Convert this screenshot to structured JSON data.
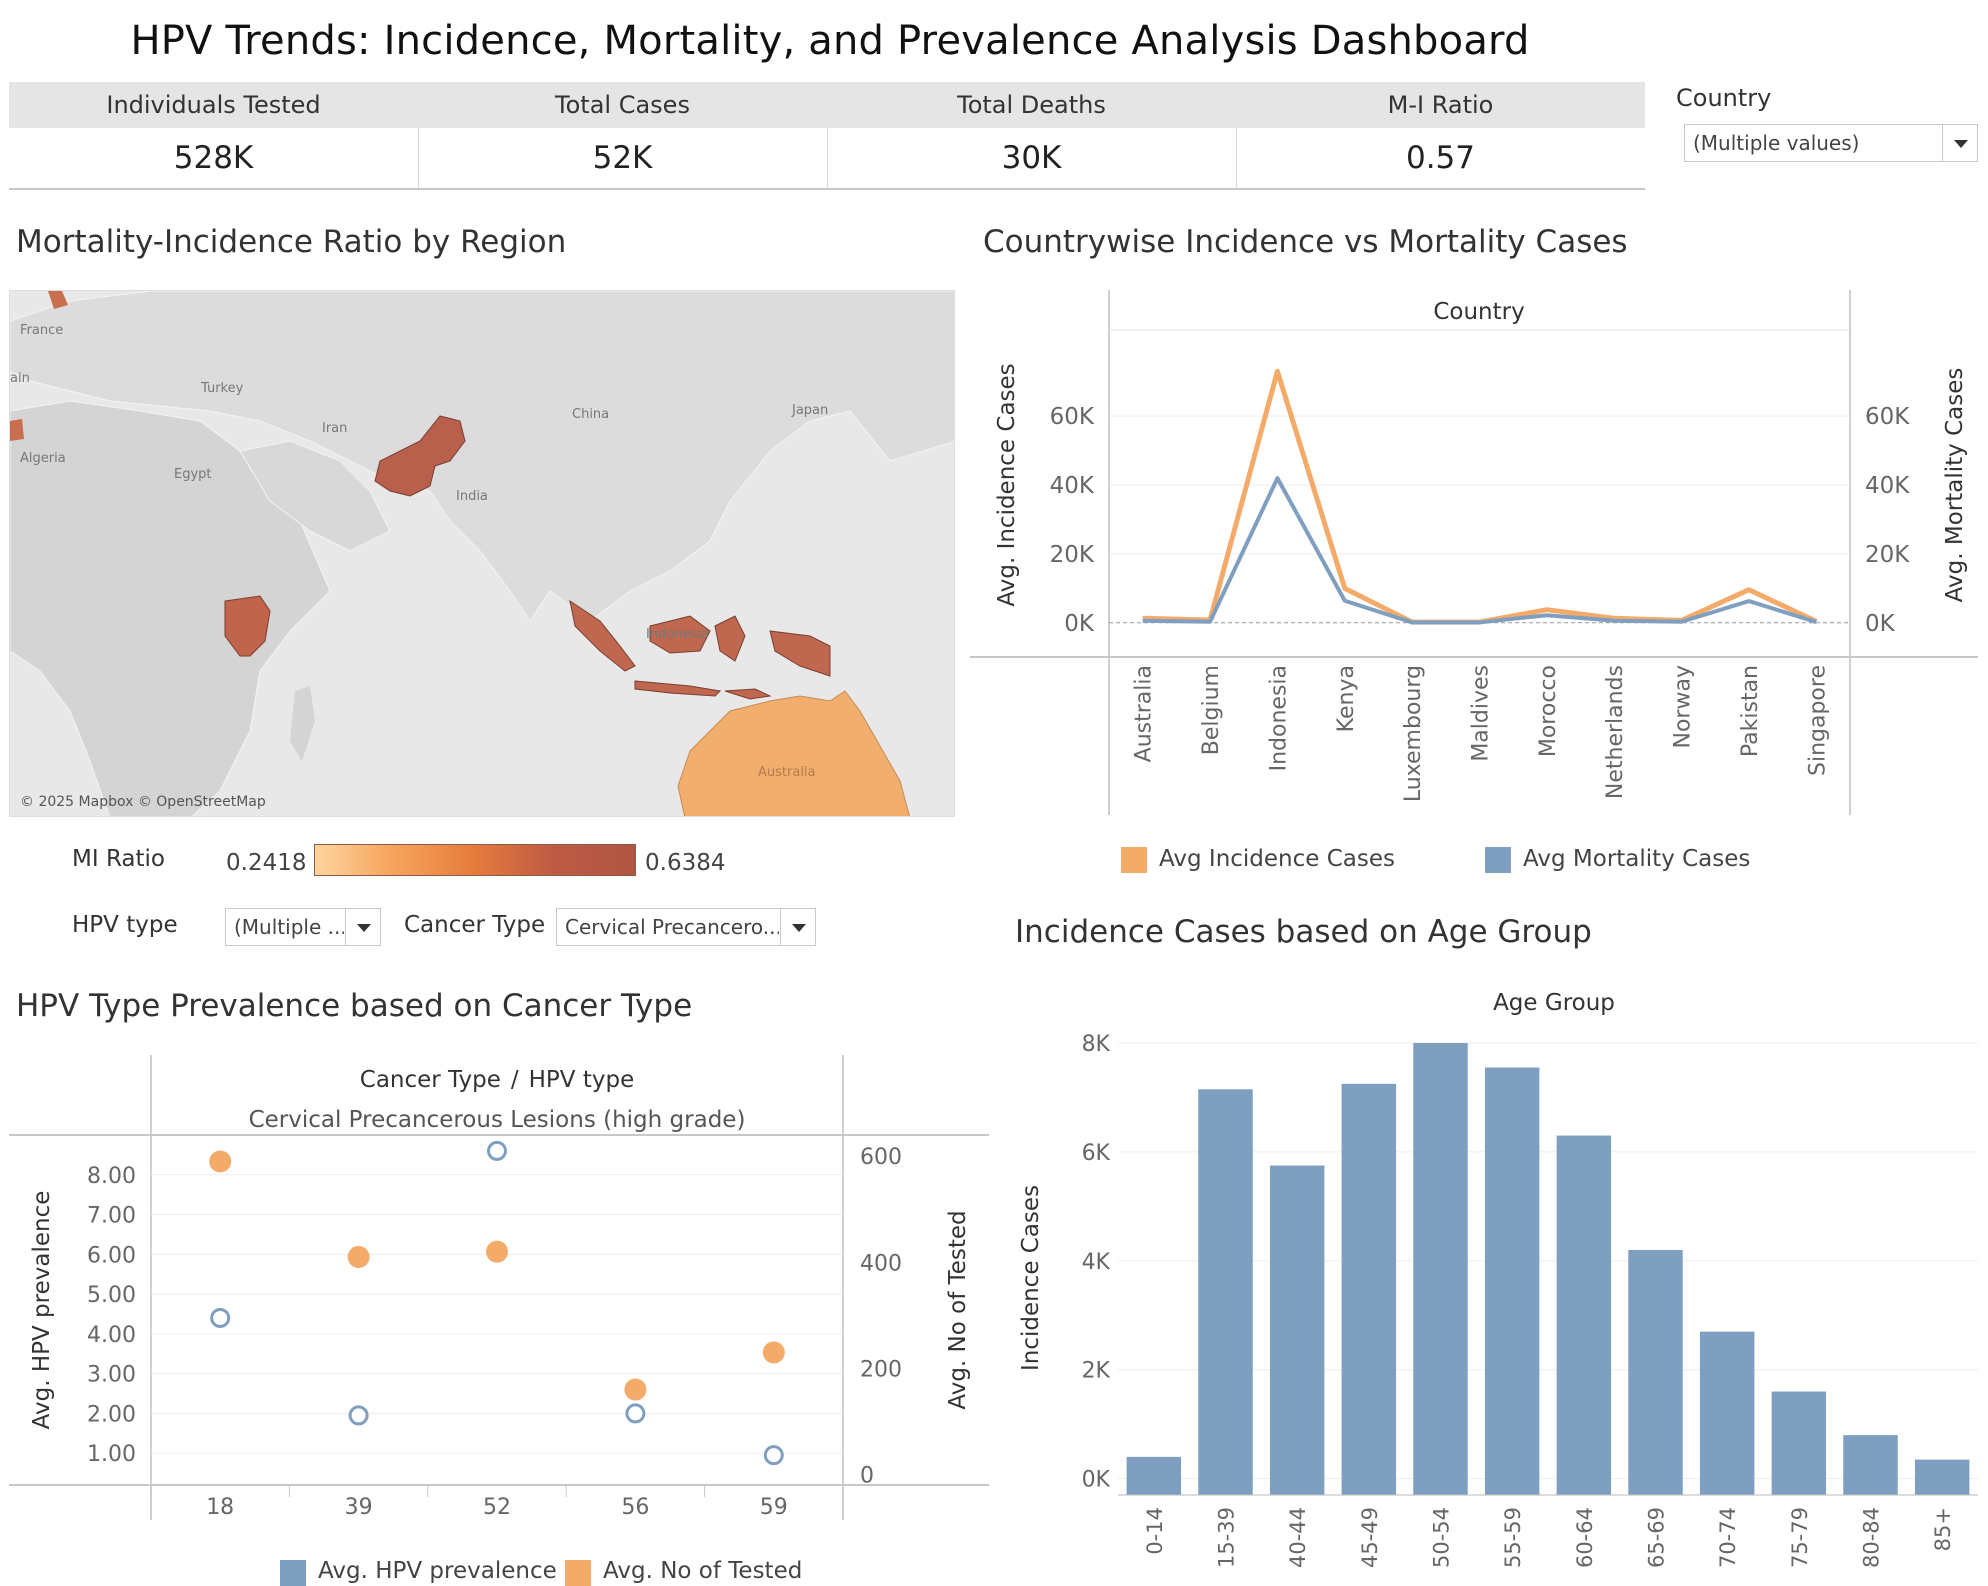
{
  "title": "HPV Trends: Incidence, Mortality, and Prevalence Analysis Dashboard",
  "kpis": [
    {
      "label": "Individuals Tested",
      "value": "528K"
    },
    {
      "label": "Total Cases",
      "value": "52K"
    },
    {
      "label": "Total Deaths",
      "value": "30K"
    },
    {
      "label": "M-I Ratio",
      "value": "0.57"
    }
  ],
  "filters": {
    "country": {
      "label": "Country",
      "value": "(Multiple values)"
    },
    "hpv_type": {
      "label": "HPV type",
      "value": "(Multiple ..."
    },
    "cancer_type": {
      "label": "Cancer Type",
      "value": "Cervical Precancero..."
    }
  },
  "map": {
    "title": "Mortality-Incidence Ratio by Region",
    "labels": [
      {
        "text": "France"
      },
      {
        "text": "ain"
      },
      {
        "text": "Turkey"
      },
      {
        "text": "Iran"
      },
      {
        "text": "China"
      },
      {
        "text": "Japan"
      },
      {
        "text": "Algeria"
      },
      {
        "text": "Egypt"
      },
      {
        "text": "India"
      },
      {
        "text": "Indonesia"
      },
      {
        "text": "Australia"
      }
    ],
    "credit": "© 2025 Mapbox © OpenStreetMap",
    "legend": {
      "title": "MI Ratio",
      "min": "0.2418",
      "max": "0.6384"
    },
    "colors": {
      "high": "#b8604b",
      "mid": "#c96e4f",
      "low": "#f1ae6c",
      "land": "#d6d6d6",
      "sea": "#e8e8e8"
    }
  },
  "chart_country": {
    "title": "Countrywise Incidence vs Mortality Cases",
    "header": "Country",
    "y_left_label": "Avg. Incidence Cases",
    "y_right_label": "Avg. Mortality Cases",
    "legend": [
      {
        "name": "Avg Incidence Cases",
        "color": "#f4ab6a"
      },
      {
        "name": "Avg Mortality Cases",
        "color": "#7f9fc1"
      }
    ]
  },
  "chart_hpv": {
    "title": "HPV Type Prevalence based on Cancer Type",
    "header_a": "Cancer Type",
    "header_sep": "/",
    "header_b": "HPV type",
    "subheader": "Cervical Precancerous Lesions (high grade)",
    "y_left_label": "Avg. HPV prevalence",
    "y_right_label": "Avg. No of Tested",
    "legend": [
      {
        "name": "Avg. HPV prevalence",
        "color": "#7f9fc1"
      },
      {
        "name": "Avg. No of Tested",
        "color": "#f4ab6a"
      }
    ]
  },
  "chart_age": {
    "title": "Incidence Cases based on Age Group",
    "header": "Age Group",
    "y_label": "Incidence Cases",
    "color": "#7f9fc1"
  },
  "chart_data": [
    {
      "type": "line",
      "title": "Countrywise Incidence vs Mortality Cases",
      "categories": [
        "Australia",
        "Belgium",
        "Indonesia",
        "Kenya",
        "Luxembourg",
        "Maldives",
        "Morocco",
        "Netherlands",
        "Norway",
        "Pakistan",
        "Singapore"
      ],
      "series": [
        {
          "name": "Avg Incidence Cases",
          "axis": "left",
          "values": [
            1300,
            800,
            73000,
            10000,
            200,
            200,
            3800,
            1300,
            700,
            9600,
            400
          ]
        },
        {
          "name": "Avg Mortality Cases",
          "axis": "right",
          "values": [
            600,
            300,
            42000,
            6400,
            100,
            100,
            2200,
            600,
            300,
            6300,
            200
          ]
        }
      ],
      "ylim": [
        -5000,
        85000
      ],
      "yticks": [
        0,
        20000,
        40000,
        60000
      ],
      "ytick_labels": [
        "0K",
        "20K",
        "40K",
        "60K"
      ],
      "ylabel": "Avg. Incidence Cases",
      "y2label": "Avg. Mortality Cases",
      "xlabel": "Country"
    },
    {
      "type": "scatter",
      "title": "HPV Type Prevalence based on Cancer Type",
      "categories": [
        "18",
        "39",
        "52",
        "56",
        "59"
      ],
      "series": [
        {
          "name": "Avg. HPV prevalence",
          "axis": "left",
          "values": [
            4.4,
            1.95,
            8.6,
            2.0,
            0.95
          ],
          "marker": "hollow"
        },
        {
          "name": "Avg. No of Tested",
          "axis": "right",
          "values": [
            590,
            410,
            420,
            160,
            230
          ],
          "marker": "filled"
        }
      ],
      "yticks": [
        1,
        2,
        3,
        4,
        5,
        6,
        7,
        8
      ],
      "ytick_labels": [
        "1.00",
        "2.00",
        "3.00",
        "4.00",
        "5.00",
        "6.00",
        "7.00",
        "8.00"
      ],
      "y2ticks": [
        0,
        200,
        400,
        600
      ],
      "y2tick_labels": [
        "0",
        "200",
        "400",
        "600"
      ],
      "ylim": [
        0.2,
        9.0
      ],
      "y2lim": [
        -20,
        640
      ],
      "ylabel": "Avg. HPV prevalence",
      "y2label": "Avg. No of Tested",
      "xlabel": "HPV type"
    },
    {
      "type": "bar",
      "title": "Incidence Cases based on Age Group",
      "categories": [
        "0-14",
        "15-39",
        "40-44",
        "45-49",
        "50-54",
        "55-59",
        "60-64",
        "65-69",
        "70-74",
        "75-79",
        "80-84",
        "85+"
      ],
      "values": [
        400,
        7150,
        5750,
        7250,
        8000,
        7550,
        6300,
        4200,
        2700,
        1600,
        800,
        350
      ],
      "ylim": [
        -300,
        8000
      ],
      "yticks": [
        0,
        2000,
        4000,
        6000,
        8000
      ],
      "ytick_labels": [
        "0K",
        "2K",
        "4K",
        "6K",
        "8K"
      ],
      "ylabel": "Incidence Cases",
      "xlabel": "Age Group"
    }
  ]
}
